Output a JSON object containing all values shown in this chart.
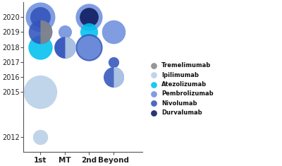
{
  "xlabel_categories": [
    "1st",
    "MT",
    "2nd",
    "Beyond"
  ],
  "x_positions": {
    "1st": 1,
    "MT": 2,
    "2nd": 3,
    "Beyond": 4
  },
  "colors": {
    "Tremelimumab": "#888888",
    "Ipilimumab": "#b8cfe8",
    "Atezolizumab": "#00c0f0",
    "Pembrolizumab": "#7090dd",
    "Nivolumab": "#3355bb",
    "Durvalumab": "#0d1a5c"
  },
  "bubbles": [
    {
      "x": "1st",
      "y": 2020,
      "drug": "Pembrolizumab",
      "r": 0.55
    },
    {
      "x": "1st",
      "y": 2020,
      "drug": "Nivolumab",
      "r": 0.38
    },
    {
      "x": "1st",
      "y": 2018,
      "drug": "Atezolizumab",
      "r": 0.45
    },
    {
      "x": "1st",
      "y": 2015,
      "drug": "Ipilimumab",
      "r": 0.62
    },
    {
      "x": "1st",
      "y": 2012,
      "drug": "Ipilimumab",
      "r": 0.28
    },
    {
      "x": "MT",
      "y": 2019,
      "drug": "Pembrolizumab",
      "r": 0.25
    },
    {
      "x": "MT",
      "y": 2018,
      "drug": "Pembrolizumab",
      "r": 0.4
    },
    {
      "x": "2nd",
      "y": 2020,
      "drug": "Pembrolizumab",
      "r": 0.5
    },
    {
      "x": "2nd",
      "y": 2020,
      "drug": "Durvalumab",
      "r": 0.35
    },
    {
      "x": "2nd",
      "y": 2019,
      "drug": "Atezolizumab",
      "r": 0.33
    },
    {
      "x": "2nd",
      "y": 2018,
      "drug": "Nivolumab",
      "r": 0.5
    },
    {
      "x": "2nd",
      "y": 2018,
      "drug": "Pembrolizumab",
      "r": 0.44
    },
    {
      "x": "Beyond",
      "y": 2019,
      "drug": "Pembrolizumab",
      "r": 0.44
    },
    {
      "x": "Beyond",
      "y": 2017,
      "drug": "Nivolumab",
      "r": 0.2
    }
  ],
  "split_bubbles": [
    {
      "x": "1st",
      "y": 2019,
      "drug_left": "Nivolumab",
      "drug_right": "Tremelimumab",
      "r": 0.44
    },
    {
      "x": "MT",
      "y": 2018,
      "drug_left": "Nivolumab",
      "drug_right": "Ipilimumab",
      "r": 0.4
    },
    {
      "x": "Beyond",
      "y": 2016,
      "drug_left": "Nivolumab",
      "drug_right": "Ipilimumab",
      "r": 0.38
    }
  ],
  "yticks": [
    2012,
    2015,
    2016,
    2017,
    2018,
    2019,
    2020
  ],
  "ylim": [
    2011,
    2021
  ],
  "xlim": [
    0.3,
    5.2
  ],
  "background": "#ffffff",
  "legend_order": [
    "Tremelimumab",
    "Ipilimumab",
    "Atezolizumab",
    "Pembrolizumab",
    "Nivolumab",
    "Durvalumab"
  ]
}
